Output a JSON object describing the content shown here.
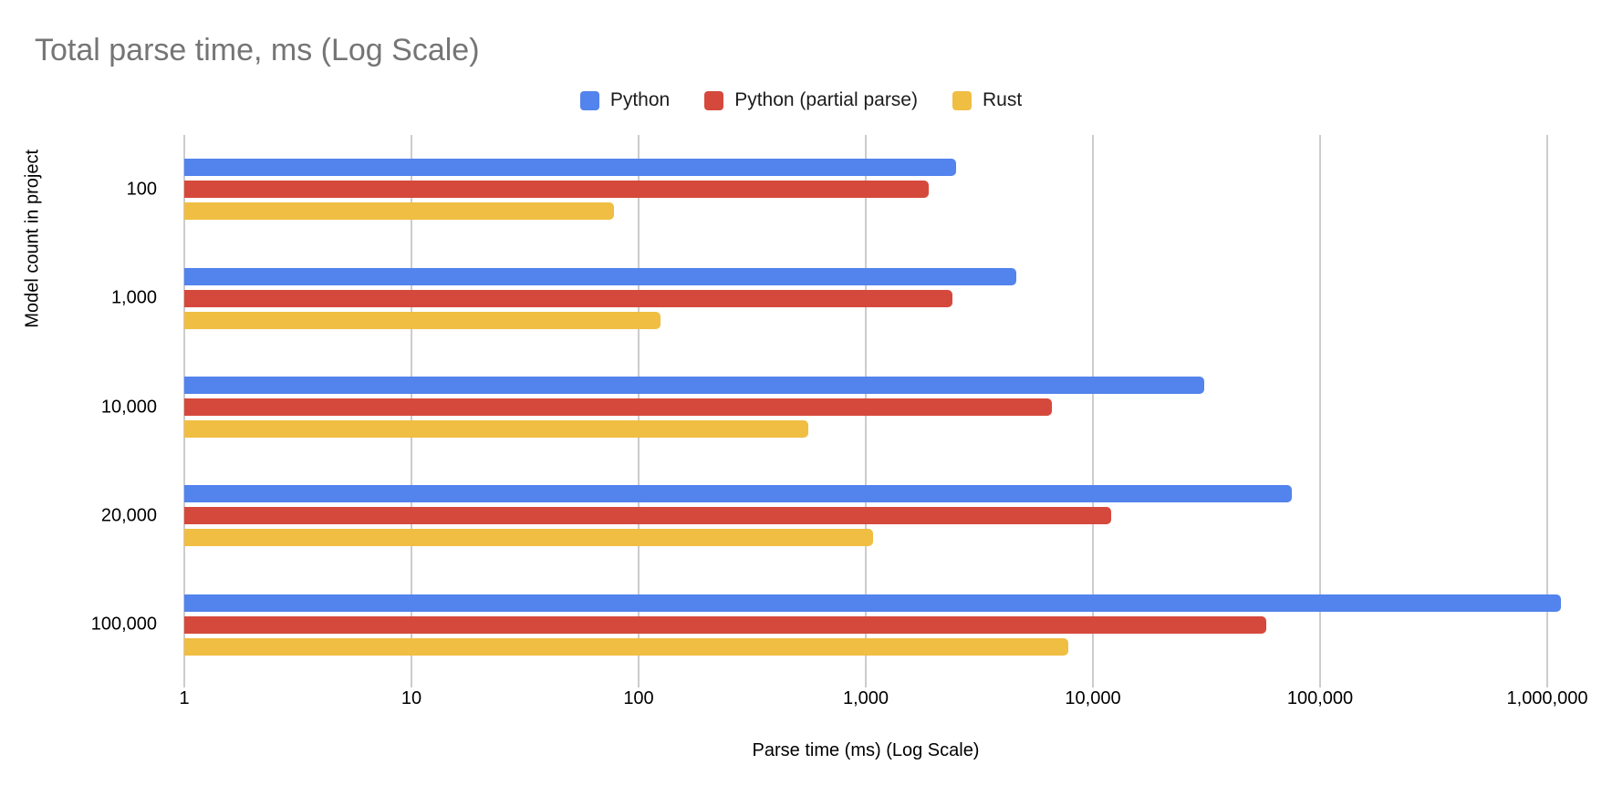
{
  "title": "Total parse time, ms (Log Scale)",
  "legend": {
    "items": [
      {
        "label": "Python",
        "color": "#5383EC"
      },
      {
        "label": "Python (partial parse)",
        "color": "#D5493C"
      },
      {
        "label": "Rust",
        "color": "#F0BE43"
      }
    ]
  },
  "x_axis": {
    "title": "Parse time (ms) (Log Scale)",
    "ticks": [
      "1",
      "10",
      "100",
      "1,000",
      "10,000",
      "100,000",
      "1,000,000"
    ]
  },
  "y_axis": {
    "title": "Model count in project"
  },
  "colors": {
    "title_text": "#757575",
    "axis_text": "#000000",
    "gridline": "#cccccc",
    "background": "#ffffff"
  },
  "chart_data": {
    "type": "bar",
    "orientation": "horizontal",
    "x_scale": "log10",
    "xlim": [
      1,
      1000000
    ],
    "title": "Total parse time, ms (Log Scale)",
    "xlabel": "Parse time (ms) (Log Scale)",
    "ylabel": "Model count in project",
    "grid": true,
    "legend_position": "top",
    "categories": [
      "100",
      "1,000",
      "10,000",
      "20,000",
      "100,000"
    ],
    "series": [
      {
        "name": "Python",
        "color": "#5383EC",
        "values": [
          2500,
          4600,
          31000,
          75000,
          1150000
        ]
      },
      {
        "name": "Python (partial parse)",
        "color": "#D5493C",
        "values": [
          1900,
          2400,
          6600,
          12000,
          58000
        ]
      },
      {
        "name": "Rust",
        "color": "#F0BE43",
        "values": [
          78,
          125,
          560,
          1080,
          7800
        ]
      }
    ]
  }
}
